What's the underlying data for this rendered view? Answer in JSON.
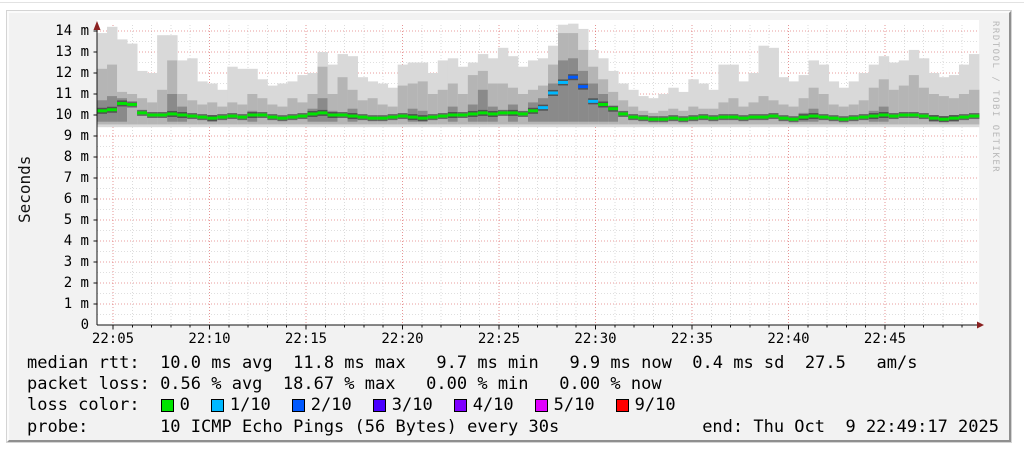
{
  "watermark": "RRDTOOL / TOBI OETIKER",
  "legend": {
    "median_rtt": {
      "label": "median rtt:",
      "text": "  10.0 ms avg  11.8 ms max   9.7 ms min   9.9 ms now  0.4 ms sd  27.5   am/s"
    },
    "packet_loss": {
      "label": "packet loss:",
      "text": " 0.56 % avg  18.67 % max   0.00 % min   0.00 % now"
    },
    "loss_color_label": "loss color:",
    "probe": {
      "label": "probe:",
      "text": "       10 ICMP Echo Pings (56 Bytes) every 30s"
    },
    "end_text": "end: Thu Oct  9 22:49:17 2025"
  },
  "chart_data": {
    "type": "area",
    "subtype": "smokeping-latency-smoke",
    "ylabel": "Seconds",
    "ylim_ms": [
      0,
      14.6
    ],
    "grid": "red dotted majors, gray dotted minors",
    "ytick_labels": [
      "0",
      "1 m",
      "2 m",
      "3 m",
      "4 m",
      "5 m",
      "6 m",
      "7 m",
      "8 m",
      "9 m",
      "10 m",
      "11 m",
      "12 m",
      "13 m",
      "14 m"
    ],
    "xtick_labels": [
      "22:05",
      "22:10",
      "22:15",
      "22:20",
      "22:25",
      "22:30",
      "22:35",
      "22:40",
      "22:45"
    ],
    "stats": {
      "median_rtt_ms": {
        "avg": 10.0,
        "max": 11.8,
        "min": 9.7,
        "now": 9.9,
        "sd": 0.4,
        "am_per_s": 27.5
      },
      "packet_loss_pct": {
        "avg": 0.56,
        "max": 18.67,
        "min": 0.0,
        "now": 0.0
      }
    },
    "probe": "10 ICMP Echo Pings (56 Bytes) every 30s",
    "end": "Thu Oct  9 22:49:17 2025",
    "loss_levels": [
      {
        "label": "0",
        "color": "#00e400"
      },
      {
        "label": "1/10",
        "color": "#00b8ff"
      },
      {
        "label": "2/10",
        "color": "#0059ff"
      },
      {
        "label": "3/10",
        "color": "#4a00ff"
      },
      {
        "label": "4/10",
        "color": "#7e00ff"
      },
      {
        "label": "5/10",
        "color": "#e000ff"
      },
      {
        "label": "9/10",
        "color": "#ff0000"
      }
    ],
    "smoke_colors": {
      "light": "#d9d9d9",
      "medium": "#b5b5b5",
      "dark": "#8a8a8a",
      "core": "#1a1a1a"
    },
    "axis_color": "#111111",
    "arrow_color": "#8a2020",
    "smoke_mins_ms": {
      "light": 9.42,
      "medium": 9.55,
      "dark": 9.68
    },
    "columns_format": [
      "light_max_ms",
      "medium_max_ms",
      "dark_max_ms(0=none)",
      "median_ms",
      "loss_level_index"
    ],
    "columns": [
      [
        13.9,
        12.2,
        10.7,
        10.2,
        0
      ],
      [
        14.2,
        12.4,
        10.9,
        10.25,
        0
      ],
      [
        13.6,
        11.1,
        10.8,
        10.55,
        0
      ],
      [
        13.4,
        11.0,
        0,
        10.5,
        0
      ],
      [
        12.1,
        10.8,
        0,
        10.1,
        0
      ],
      [
        12.0,
        10.6,
        0,
        10.0,
        0
      ],
      [
        13.8,
        11.2,
        0,
        10.0,
        0
      ],
      [
        13.8,
        12.6,
        11.0,
        10.05,
        0
      ],
      [
        12.6,
        11.0,
        10.4,
        10.0,
        0
      ],
      [
        12.7,
        10.7,
        0,
        9.95,
        0
      ],
      [
        11.6,
        10.5,
        0,
        9.9,
        0
      ],
      [
        11.5,
        10.6,
        10.0,
        9.85,
        0
      ],
      [
        11.2,
        10.4,
        0,
        9.9,
        0
      ],
      [
        12.3,
        10.6,
        0,
        9.95,
        0
      ],
      [
        12.2,
        10.5,
        0,
        9.9,
        0
      ],
      [
        12.2,
        11.0,
        10.2,
        10.0,
        0
      ],
      [
        11.7,
        10.8,
        0,
        10.0,
        0
      ],
      [
        11.4,
        10.5,
        0,
        9.9,
        0
      ],
      [
        11.5,
        10.4,
        0,
        9.85,
        0
      ],
      [
        11.6,
        10.8,
        0,
        9.9,
        0
      ],
      [
        11.9,
        10.6,
        0,
        9.95,
        0
      ],
      [
        12.0,
        11.0,
        10.3,
        10.05,
        0
      ],
      [
        13.0,
        12.3,
        10.8,
        10.1,
        0
      ],
      [
        12.4,
        11.0,
        10.2,
        10.0,
        0
      ],
      [
        12.9,
        11.8,
        0,
        10.0,
        0
      ],
      [
        12.8,
        11.2,
        10.3,
        9.95,
        0
      ],
      [
        11.8,
        10.7,
        0,
        9.9,
        0
      ],
      [
        11.6,
        10.8,
        0,
        9.85,
        0
      ],
      [
        11.5,
        10.5,
        0,
        9.85,
        0
      ],
      [
        11.3,
        10.4,
        0,
        9.9,
        0
      ],
      [
        12.4,
        11.4,
        0,
        9.95,
        0
      ],
      [
        12.5,
        11.5,
        10.3,
        9.9,
        0
      ],
      [
        12.5,
        11.6,
        10.2,
        9.85,
        0
      ],
      [
        12.0,
        11.0,
        0,
        9.9,
        0
      ],
      [
        12.6,
        11.2,
        0,
        9.95,
        0
      ],
      [
        12.7,
        11.5,
        10.4,
        10.0,
        0
      ],
      [
        12.3,
        11.0,
        0,
        10.0,
        0
      ],
      [
        12.5,
        11.9,
        10.5,
        10.05,
        0
      ],
      [
        12.9,
        12.1,
        11.2,
        10.1,
        0
      ],
      [
        12.7,
        11.5,
        10.4,
        10.05,
        0
      ],
      [
        13.2,
        11.5,
        0,
        10.1,
        0
      ],
      [
        12.8,
        11.3,
        10.5,
        10.1,
        0
      ],
      [
        12.3,
        11.0,
        0,
        10.05,
        0
      ],
      [
        12.6,
        11.2,
        10.6,
        10.2,
        0
      ],
      [
        12.7,
        11.4,
        10.8,
        10.35,
        1
      ],
      [
        13.3,
        12.4,
        11.5,
        11.05,
        1
      ],
      [
        14.3,
        13.9,
        12.6,
        11.55,
        1
      ],
      [
        14.35,
        13.9,
        12.7,
        11.8,
        2
      ],
      [
        14.1,
        13.1,
        12.1,
        11.35,
        2
      ],
      [
        13.1,
        12.3,
        11.5,
        10.65,
        1
      ],
      [
        12.7,
        11.7,
        11.0,
        10.5,
        0
      ],
      [
        12.1,
        11.1,
        10.4,
        10.3,
        0
      ],
      [
        11.5,
        10.7,
        0,
        10.05,
        0
      ],
      [
        11.2,
        10.4,
        0,
        9.9,
        0
      ],
      [
        10.9,
        10.2,
        0,
        9.85,
        0
      ],
      [
        10.8,
        10.1,
        0,
        9.8,
        0
      ],
      [
        11.0,
        10.2,
        0,
        9.8,
        0
      ],
      [
        11.3,
        10.3,
        0,
        9.85,
        0
      ],
      [
        11.1,
        10.2,
        0,
        9.8,
        0
      ],
      [
        11.7,
        10.4,
        0,
        9.85,
        0
      ],
      [
        11.5,
        10.3,
        0,
        9.9,
        0
      ],
      [
        11.2,
        10.3,
        0,
        9.85,
        0
      ],
      [
        12.4,
        10.6,
        0,
        9.9,
        0
      ],
      [
        12.4,
        10.8,
        0,
        9.9,
        0
      ],
      [
        11.6,
        10.4,
        0,
        9.85,
        0
      ],
      [
        12.0,
        10.6,
        0,
        9.9,
        0
      ],
      [
        13.3,
        10.9,
        0,
        9.9,
        0
      ],
      [
        13.2,
        10.7,
        0,
        9.95,
        0
      ],
      [
        11.8,
        10.5,
        0,
        9.85,
        0
      ],
      [
        11.6,
        10.4,
        0,
        9.8,
        0
      ],
      [
        11.9,
        10.8,
        10.1,
        9.9,
        0
      ],
      [
        12.6,
        11.3,
        10.3,
        9.95,
        0
      ],
      [
        12.4,
        11.0,
        0,
        9.9,
        0
      ],
      [
        11.6,
        10.5,
        0,
        9.85,
        0
      ],
      [
        11.3,
        10.4,
        0,
        9.8,
        0
      ],
      [
        11.6,
        10.5,
        0,
        9.85,
        0
      ],
      [
        12.0,
        10.7,
        0,
        9.9,
        0
      ],
      [
        12.4,
        11.3,
        10.2,
        9.95,
        0
      ],
      [
        12.8,
        11.7,
        10.4,
        10.0,
        0
      ],
      [
        12.5,
        11.2,
        0,
        9.95,
        0
      ],
      [
        12.6,
        11.4,
        0,
        10.0,
        0
      ],
      [
        13.1,
        11.9,
        0,
        10.0,
        0
      ],
      [
        12.7,
        11.3,
        0,
        9.95,
        0
      ],
      [
        12.0,
        11.0,
        10.0,
        9.85,
        0
      ],
      [
        11.8,
        10.9,
        9.95,
        9.8,
        0
      ],
      [
        11.9,
        10.8,
        10.0,
        9.85,
        0
      ],
      [
        12.4,
        11.0,
        0,
        9.9,
        0
      ],
      [
        12.9,
        11.2,
        0,
        9.95,
        0
      ]
    ]
  }
}
